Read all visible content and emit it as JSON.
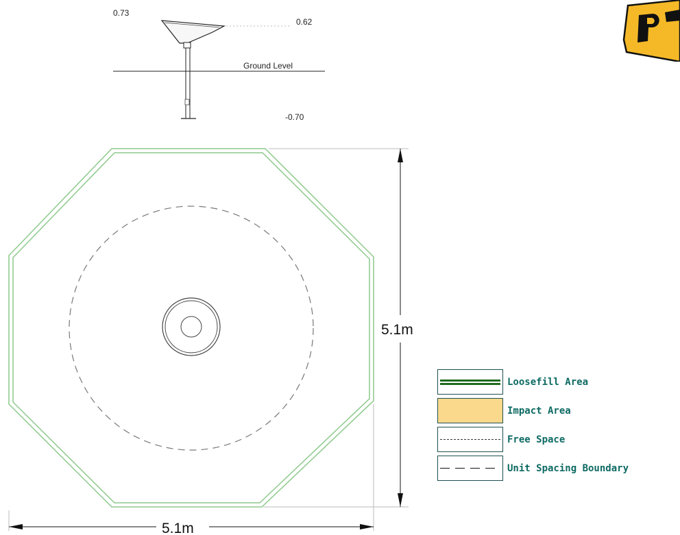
{
  "elevation": {
    "top_height_label": "0.73",
    "rim_height_label": "0.62",
    "ground_label": "Ground Level",
    "depth_label": "-0.70"
  },
  "plan": {
    "height_dimension": "5.1m",
    "width_dimension": "5.1m"
  },
  "legend": {
    "items": [
      {
        "label": "Loosefill Area"
      },
      {
        "label": "Impact Area"
      },
      {
        "label": "Free Space"
      },
      {
        "label": "Unit Spacing Boundary"
      }
    ]
  },
  "colors": {
    "loosefill": "#1f6a1f",
    "impact": "#fbd98c",
    "legend_text": "#0e6a63",
    "octagon": "#8cc98c",
    "logo": "#f5b928"
  }
}
